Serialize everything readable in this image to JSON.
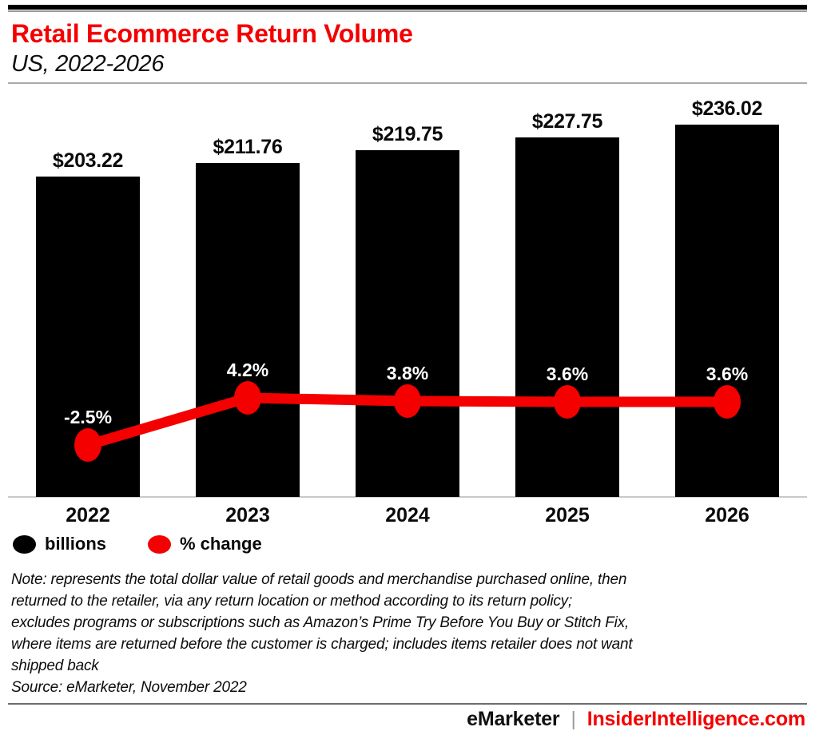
{
  "header": {
    "title": "Retail Ecommerce Return Volume",
    "subtitle": "US, 2022-2026"
  },
  "colors": {
    "accent_red": "#f40000",
    "bar_black": "#000000",
    "label_white": "#ffffff"
  },
  "chart_data": {
    "type": "combo",
    "title": "Retail Ecommerce Return Volume",
    "subtitle": "US, 2022-2026",
    "categories": [
      "2022",
      "2023",
      "2024",
      "2025",
      "2026"
    ],
    "series": [
      {
        "name": "billions",
        "type": "bar",
        "values": [
          203.22,
          211.76,
          219.75,
          227.75,
          236.02
        ],
        "labels": [
          "$203.22",
          "$211.76",
          "$219.75",
          "$227.75",
          "$236.02"
        ],
        "color": "#000000"
      },
      {
        "name": "% change",
        "type": "line",
        "values": [
          -2.5,
          4.2,
          3.8,
          3.6,
          3.6
        ],
        "labels": [
          "-2.5%",
          "4.2%",
          "3.8%",
          "3.6%",
          "3.6%"
        ],
        "color": "#f40000"
      }
    ],
    "legend": [
      {
        "label": "billions",
        "color": "#000000"
      },
      {
        "label": "% change",
        "color": "#f40000"
      }
    ],
    "layout": {
      "grid": false,
      "legend_position": "bottom-left",
      "bar_value_labels": "above bars",
      "line_value_labels": "above points, white"
    }
  },
  "note": "Note: represents the total dollar value of retail goods and merchandise purchased online, then\nreturned to the retailer, via any return location or method according to its return policy;\nexcludes programs or subscriptions such as Amazon’s Prime Try Before You Buy or Stitch Fix,\nwhere items are returned before the customer is charged; includes items retailer does not want\nshipped back",
  "source": "Source: eMarketer, November 2022",
  "footer": {
    "brand": "eMarketer",
    "separator": "|",
    "site": "InsiderIntelligence.com"
  }
}
